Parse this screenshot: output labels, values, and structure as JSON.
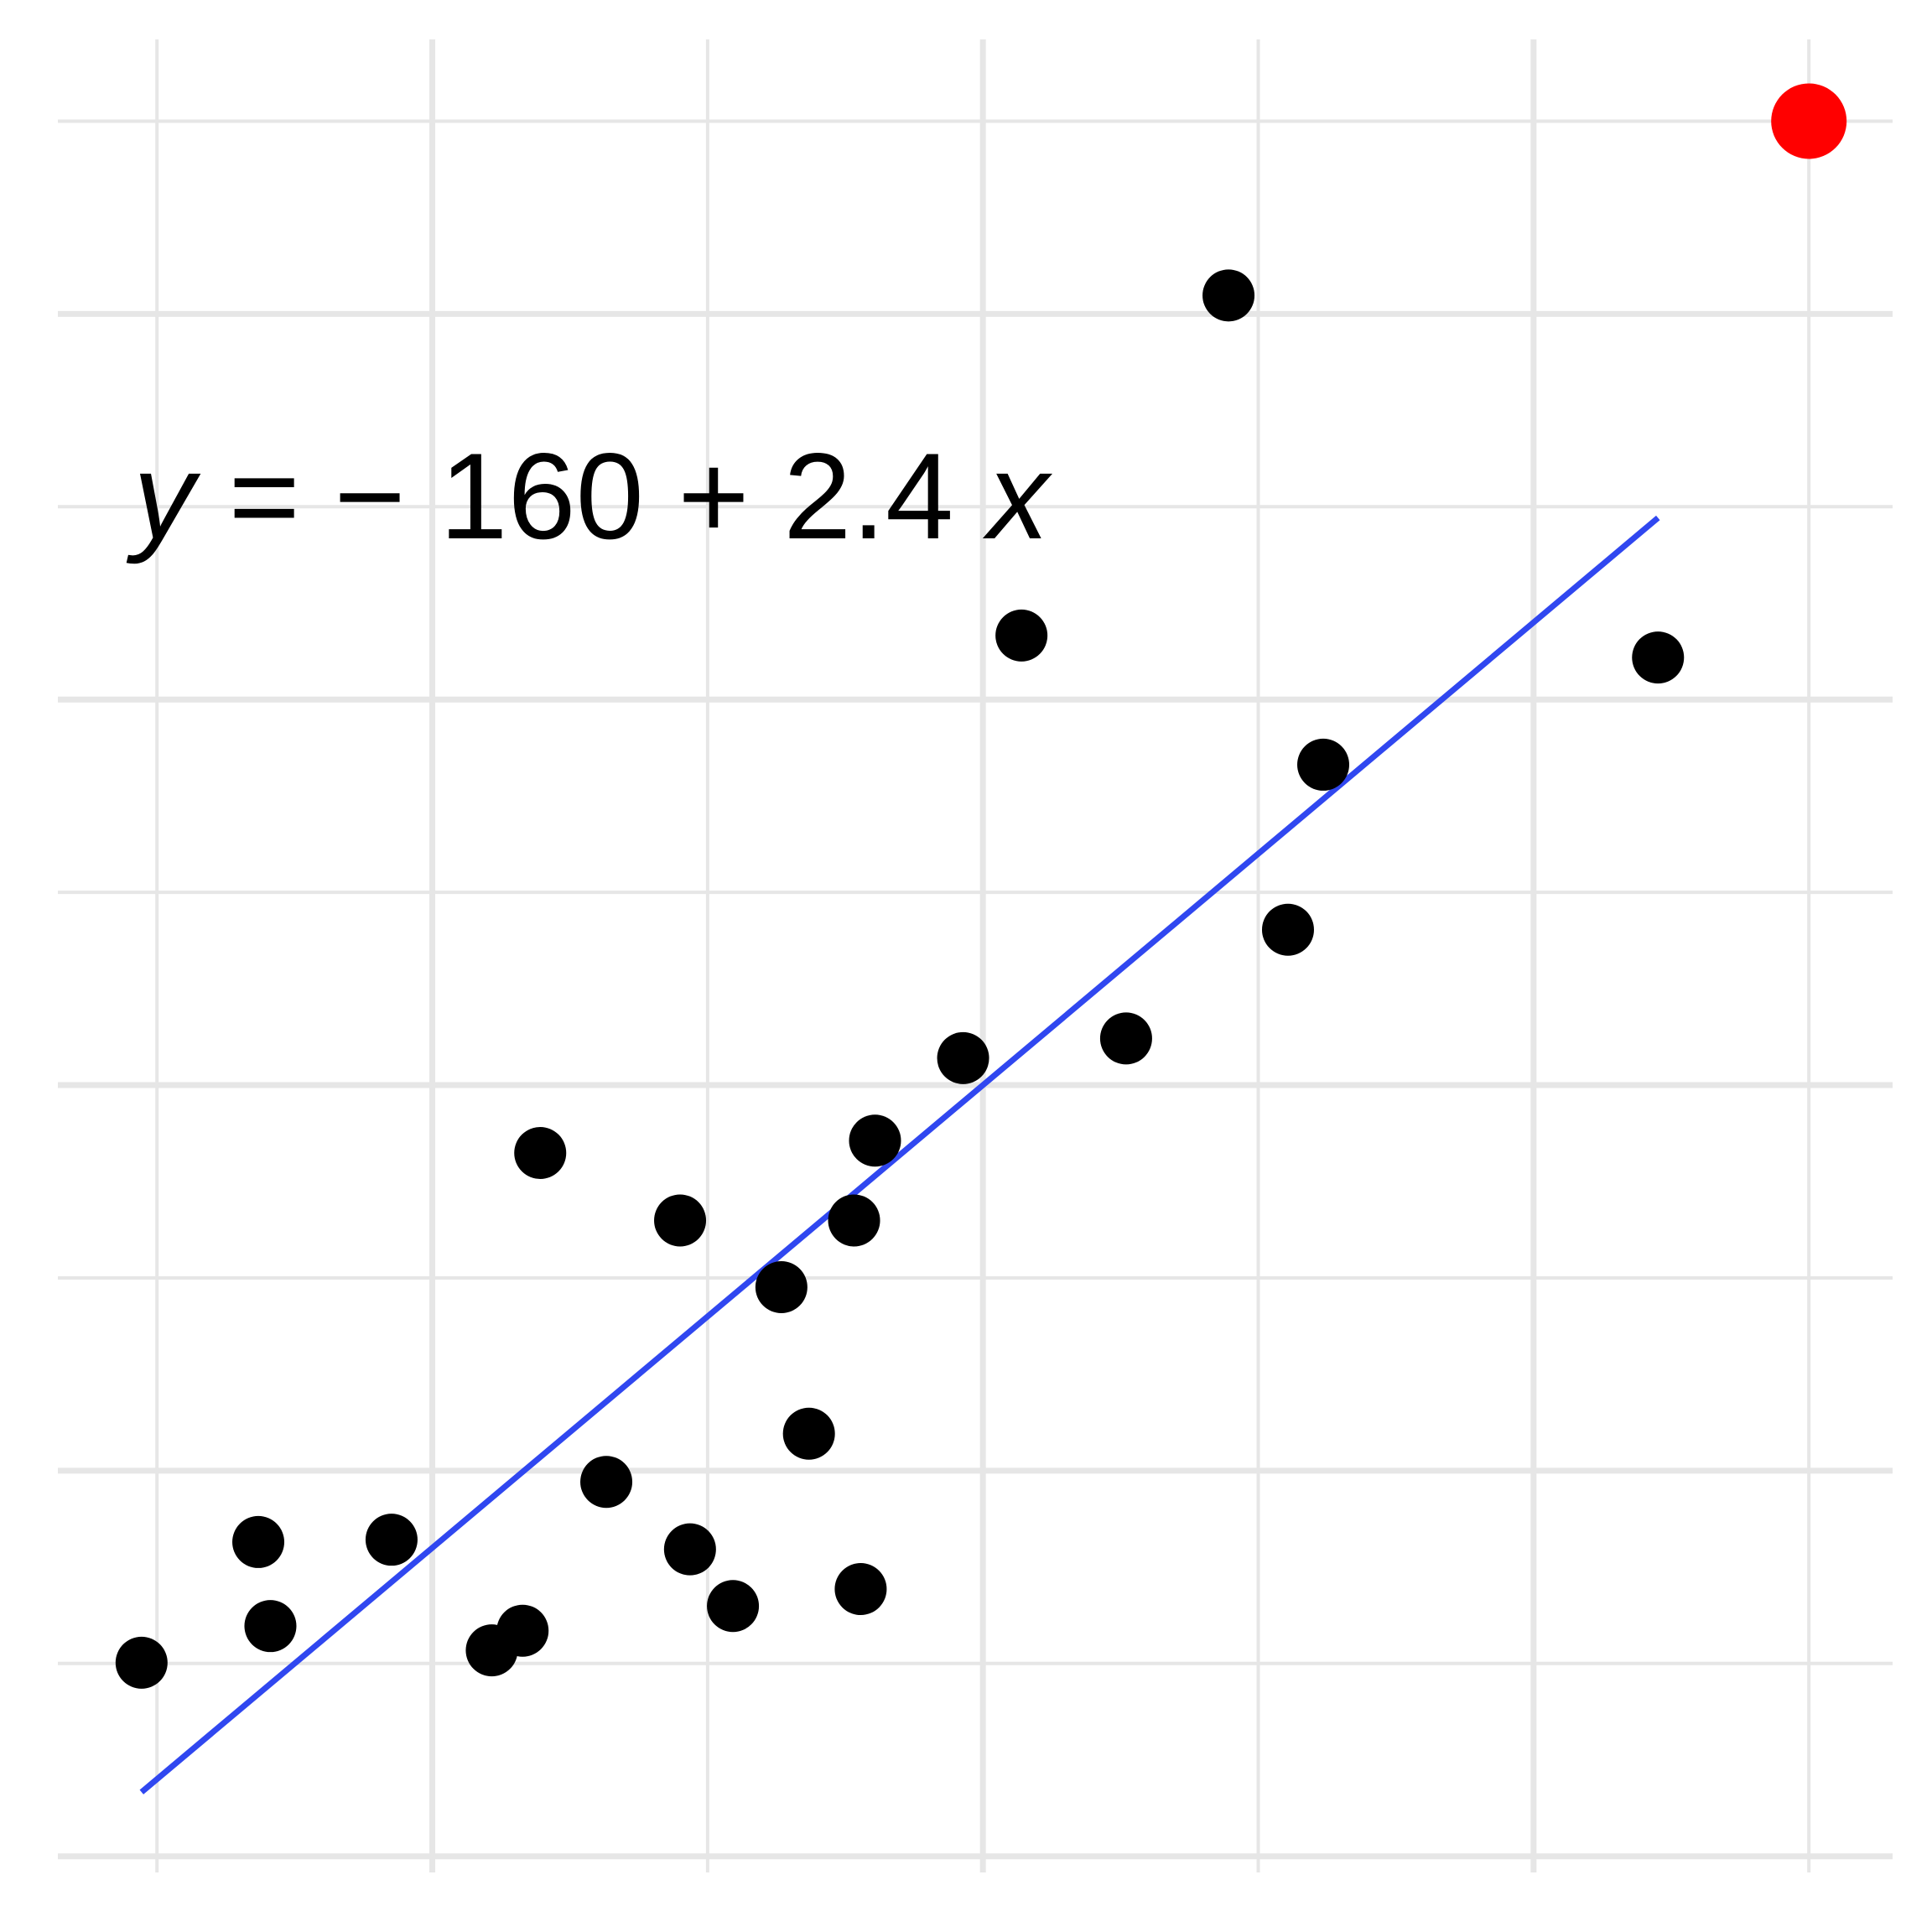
{
  "chart_data": {
    "type": "scatter",
    "xlim": [
      66,
      232.6
    ],
    "ylim": [
      -4.2,
      471.2
    ],
    "xticks": [
      100,
      150,
      200
    ],
    "xticks_minor": [
      75,
      125,
      175,
      225
    ],
    "yticks": [
      0,
      100,
      200,
      300,
      400
    ],
    "yticks_minor": [
      50,
      150,
      250,
      350,
      450
    ],
    "grid": true,
    "grid_color": "#e6e6e6",
    "series": [
      {
        "color": "#000000",
        "x": [
          73.6,
          84.2,
          85.3,
          96.3,
          105.4,
          108.2,
          109.8,
          115.8,
          122.5,
          123.4,
          127.3,
          131.7,
          134.2,
          138.3,
          138.9,
          140.2,
          148.2,
          153.5,
          163.0,
          172.3,
          177.7,
          180.9,
          211.3
        ],
        "values": [
          50.2,
          81.5,
          59.7,
          82.1,
          53.4,
          58.5,
          182.4,
          97.1,
          164.9,
          79.6,
          64.9,
          147.6,
          109.6,
          164.9,
          69.3,
          185.6,
          207.0,
          316.6,
          212.1,
          404.8,
          240.3,
          283.1,
          310.9
        ]
      },
      {
        "color": "#ff0000",
        "x": [
          225
        ],
        "values": [
          450
        ]
      }
    ],
    "fit": {
      "color": "#3047f0",
      "intercept": -160,
      "slope": 2.4,
      "x": [
        73.6,
        211.3
      ]
    },
    "annotation": [
      "y",
      "= − 160 + 2.4",
      "x"
    ]
  }
}
